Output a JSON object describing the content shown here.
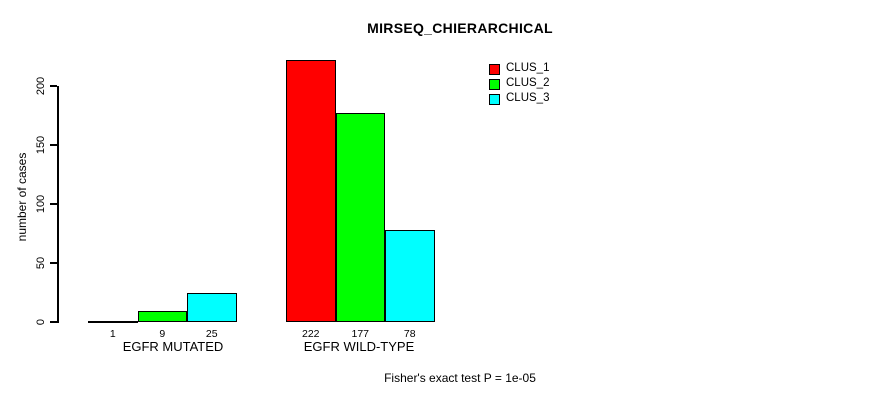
{
  "title": "MIRSEQ_CHIERARCHICAL",
  "footer": "Fisher's exact test P = 1e-05",
  "colors": {
    "clus_1": "#ff0000",
    "clus_2": "#00ff00",
    "clus_3": "#00ffff",
    "axis": "#000000",
    "background": "#ffffff"
  },
  "chart_data": {
    "type": "bar",
    "title": "MIRSEQ_CHIERARCHICAL",
    "xlabel": "",
    "ylabel": "number of cases",
    "categories": [
      "EGFR MUTATED",
      "EGFR WILD-TYPE"
    ],
    "series": [
      {
        "name": "CLUS_1",
        "color": "#ff0000",
        "values": [
          1,
          222
        ]
      },
      {
        "name": "CLUS_2",
        "color": "#00ff00",
        "values": [
          9,
          177
        ]
      },
      {
        "name": "CLUS_3",
        "color": "#00ffff",
        "values": [
          25,
          78
        ]
      }
    ],
    "bar_value_labels": [
      [
        "1",
        "9",
        "25"
      ],
      [
        "222",
        "177",
        "78"
      ]
    ],
    "yticks": [
      0,
      50,
      100,
      150,
      200
    ],
    "ylim": [
      0,
      232
    ],
    "grid": false,
    "legend_position": "top-right",
    "legend_entries": [
      "CLUS_1",
      "CLUS_2",
      "CLUS_3"
    ],
    "annotation": "Fisher's exact test P = 1e-05"
  }
}
